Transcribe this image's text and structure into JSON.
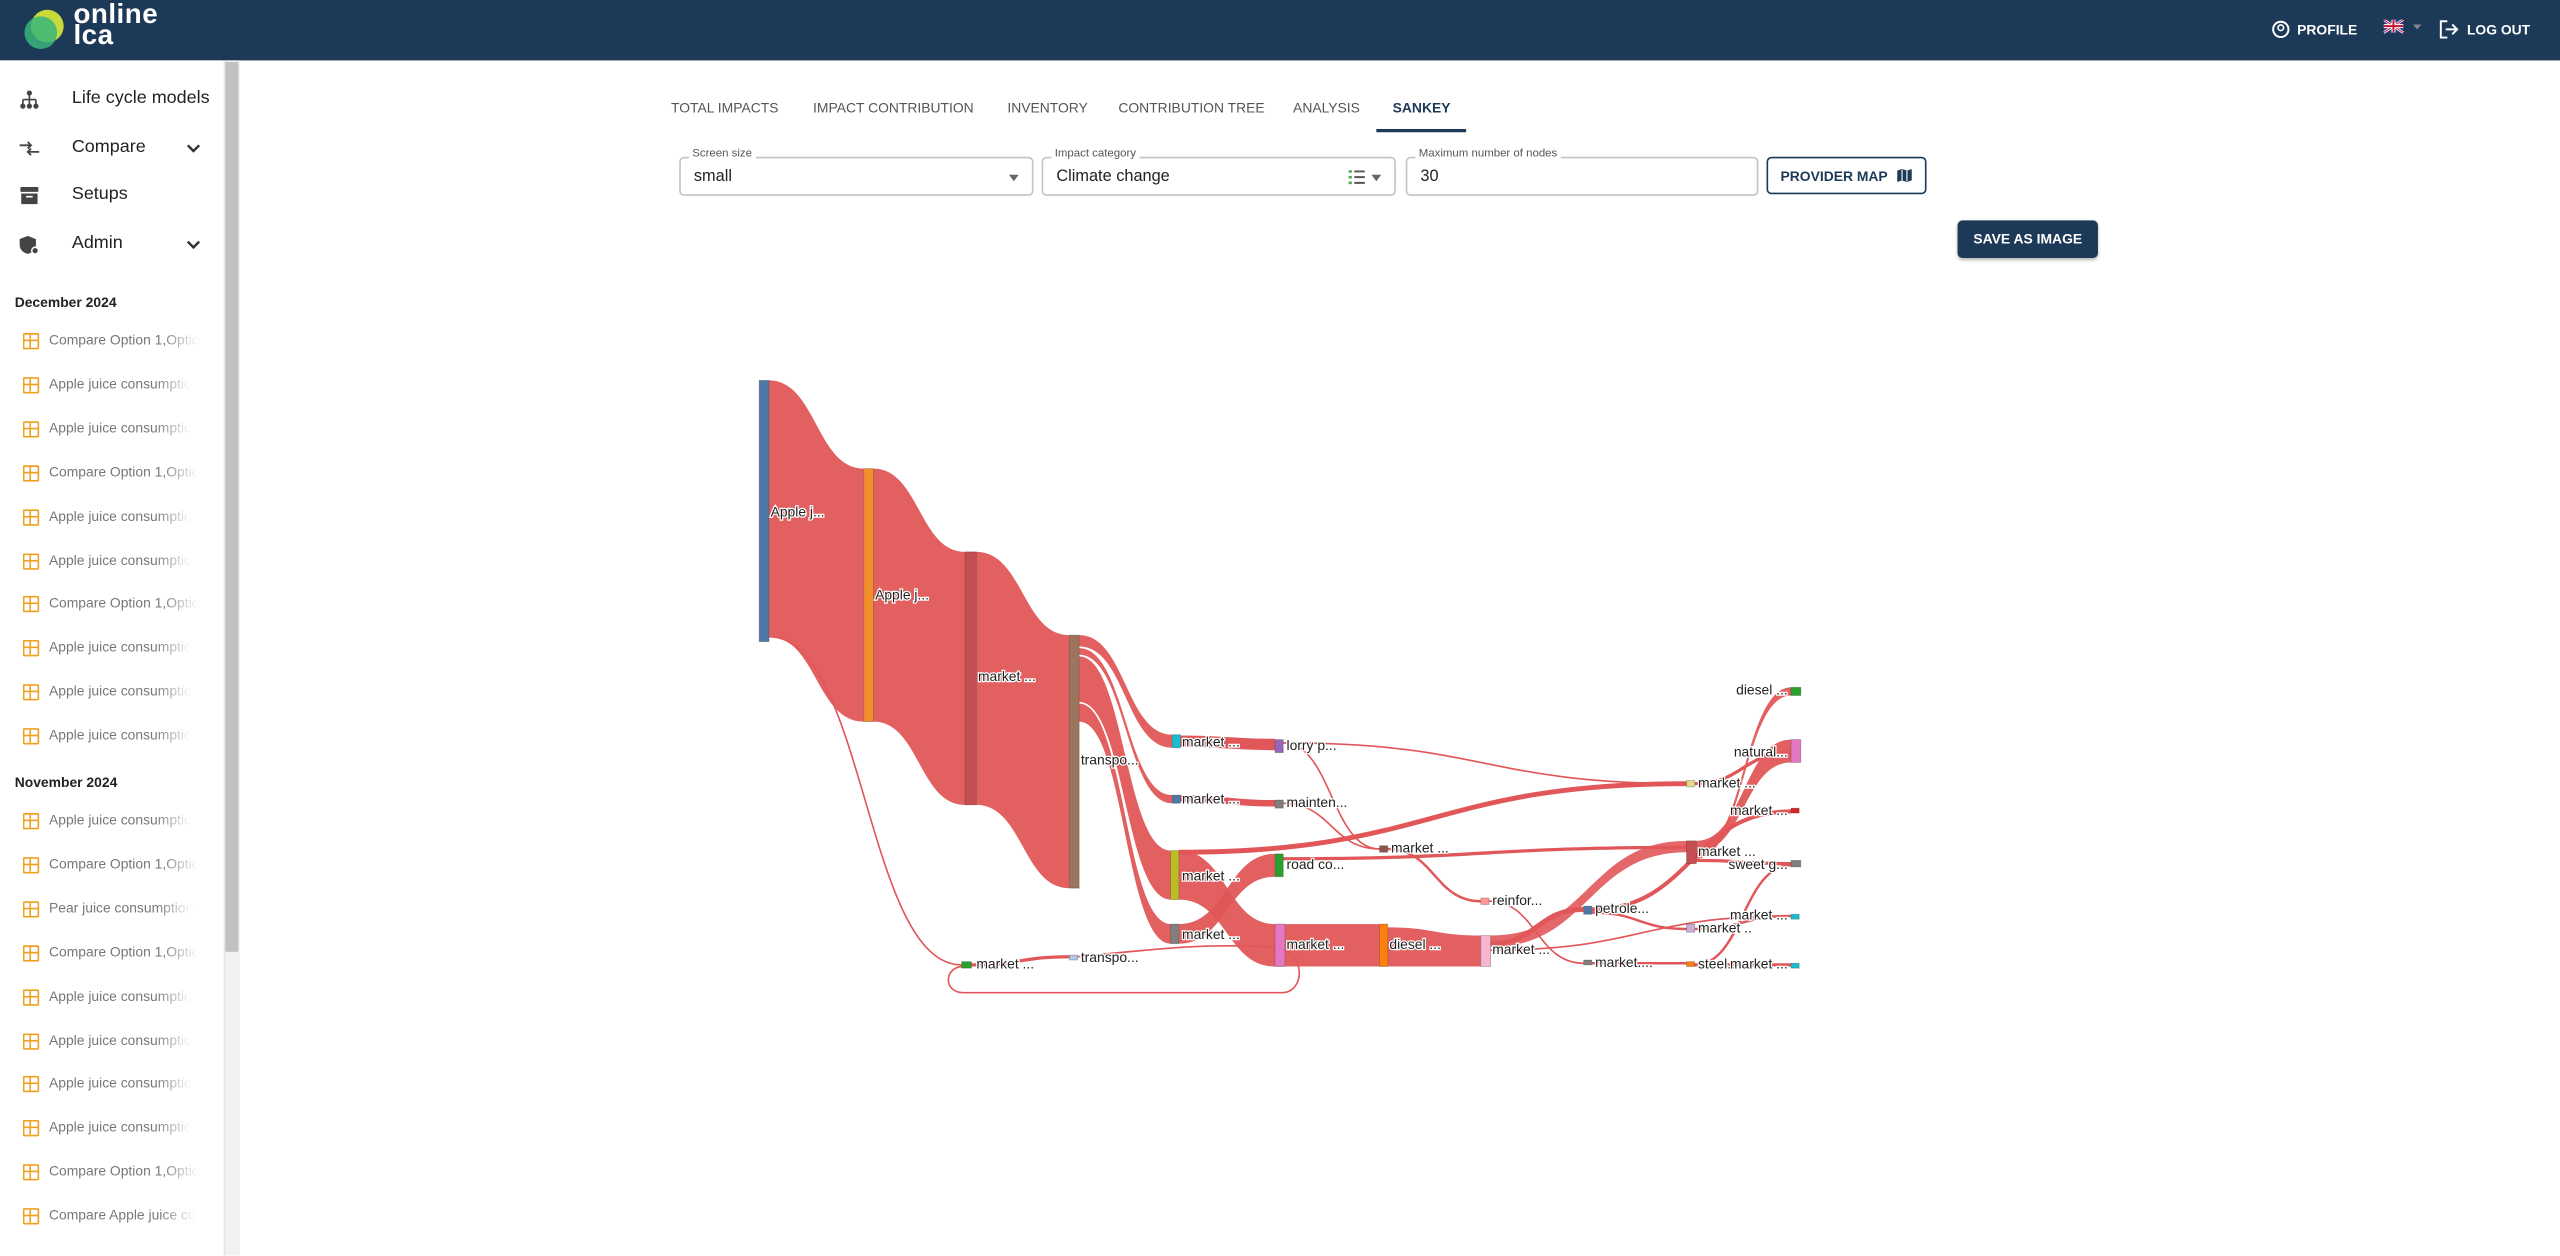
{
  "header": {
    "logo_top": "online",
    "logo_bottom": "lca",
    "profile": "PROFILE",
    "logout": "LOG OUT"
  },
  "sidebar": {
    "menu": [
      {
        "label": "Life cycle models",
        "expandable": false
      },
      {
        "label": "Compare",
        "expandable": true
      },
      {
        "label": "Setups",
        "expandable": false
      },
      {
        "label": "Admin",
        "expandable": true
      }
    ],
    "groups": [
      {
        "title": "December 2024",
        "items": [
          "Compare Option 1,Optio",
          "Apple juice consumptio",
          "Apple juice consumptio",
          "Compare Option 1,Optio",
          "Apple juice consumptio",
          "Apple juice consumptio",
          "Compare Option 1,Optio",
          "Apple juice consumptio",
          "Apple juice consumptio",
          "Apple juice consumptio"
        ]
      },
      {
        "title": "November 2024",
        "items": [
          "Apple juice consumptio",
          "Compare Option 1,Optio",
          "Pear juice consumption",
          "Compare Option 1,Optio",
          "Apple juice consumptio",
          "Apple juice consumptio",
          "Apple juice consumptio",
          "Apple juice consumptio",
          "Compare Option 1,Optio",
          "Compare Apple juice co"
        ]
      }
    ]
  },
  "tabs": {
    "items": [
      "TOTAL IMPACTS",
      "IMPACT CONTRIBUTION",
      "INVENTORY",
      "CONTRIBUTION TREE",
      "ANALYSIS",
      "SANKEY"
    ],
    "active": 5
  },
  "form": {
    "screen_size": {
      "label": "Screen size",
      "value": "small"
    },
    "impact_category": {
      "label": "Impact category",
      "value": "Climate change"
    },
    "max_nodes": {
      "label": "Maximum number of nodes",
      "value": "30"
    },
    "provider_map": "PROVIDER MAP",
    "save": "SAVE AS IMAGE"
  },
  "sankey": {
    "link_color": "#e15759",
    "nodes": [
      {
        "label": "Apple j...",
        "color": "#4e79a7"
      },
      {
        "label": "Apple j...",
        "color": "#f28e2b"
      },
      {
        "label": "market ...",
        "color": "#c44e52"
      },
      {
        "label": "transpo...",
        "color": "#9c755f"
      },
      {
        "label": "market ...",
        "color": "#17becf"
      },
      {
        "label": "lorry p...",
        "color": "#9467bd"
      },
      {
        "label": "market ...",
        "color": "#4e79a7"
      },
      {
        "label": "mainten...",
        "color": "#7f7f7f"
      },
      {
        "label": "market ...",
        "color": "#bcbd22"
      },
      {
        "label": "road co...",
        "color": "#2ca02c"
      },
      {
        "label": "market ...",
        "color": "#7f7f7f"
      },
      {
        "label": "market ...",
        "color": "#e377c2"
      },
      {
        "label": "diesel ...",
        "color": "#ff7f0e"
      },
      {
        "label": "market ...",
        "color": "#f7b6d2"
      },
      {
        "label": "market ...",
        "color": "#8c564b"
      },
      {
        "label": "reinfor...",
        "color": "#ff9896"
      },
      {
        "label": "petrole...",
        "color": "#4e79a7"
      },
      {
        "label": "market....",
        "color": "#7f7f7f"
      },
      {
        "label": "market ...",
        "color": "#2ca02c"
      },
      {
        "label": "transpo...",
        "color": "#aec7e8"
      },
      {
        "label": "diesel ...",
        "color": "#2ca02c"
      },
      {
        "label": "natural...",
        "color": "#e377c2"
      },
      {
        "label": "market ...",
        "color": "#dbdb8d"
      },
      {
        "label": "market ...",
        "color": "#d62728"
      },
      {
        "label": "market ...",
        "color": "#c44e52"
      },
      {
        "label": "sweet g...",
        "color": "#7f7f7f"
      },
      {
        "label": "market ...",
        "color": "#17becf"
      },
      {
        "label": "market ..",
        "color": "#c5b0d5"
      },
      {
        "label": "steel...",
        "color": "#ff7f0e"
      },
      {
        "label": "market ...",
        "color": "#17becf"
      }
    ]
  }
}
